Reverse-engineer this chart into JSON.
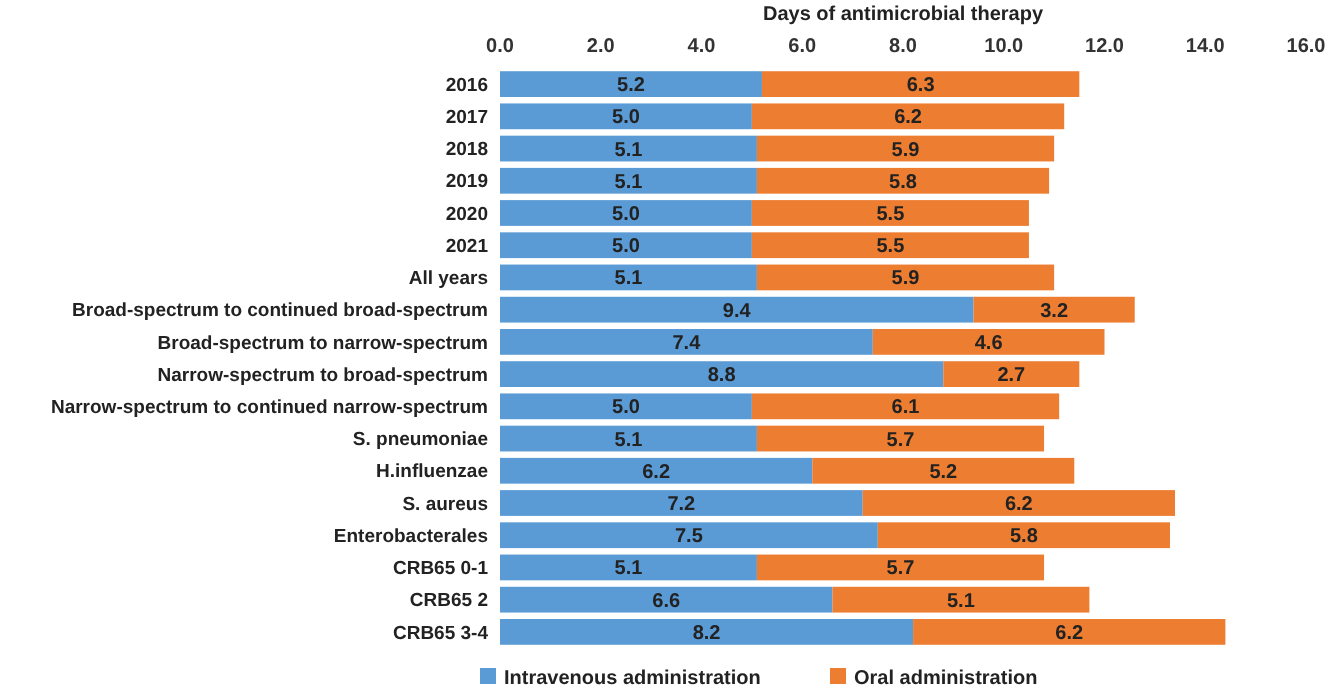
{
  "chart_data": {
    "type": "bar",
    "orientation": "horizontal",
    "stacked": true,
    "xlabel": "Days of antimicrobial therapy",
    "categories": [
      "2016",
      "2017",
      "2018",
      "2019",
      "2020",
      "2021",
      "All years",
      "Broad-spectrum to continued broad-spectrum",
      "Broad-spectrum to narrow-spectrum",
      "Narrow-spectrum to broad-spectrum",
      "Narrow-spectrum to continued narrow-spectrum",
      "S. pneumoniae",
      "H.influenzae",
      "S. aureus",
      "Enterobacterales",
      "CRB65 0-1",
      "CRB65 2",
      "CRB65 3-4"
    ],
    "series": [
      {
        "name": "Intravenous administration",
        "color": "#5b9bd5",
        "values": [
          5.2,
          5.0,
          5.1,
          5.1,
          5.0,
          5.0,
          5.1,
          9.4,
          7.4,
          8.8,
          5.0,
          5.1,
          6.2,
          7.2,
          7.5,
          5.1,
          6.6,
          8.2
        ],
        "value_labels": [
          "5.2",
          "5.0",
          "5.1",
          "5.1",
          "5.0",
          "5.0",
          "5.1",
          "9.4",
          "7.4",
          "8.8",
          "5.0",
          "5.1",
          "6.2",
          "7.2",
          "7.5",
          "5.1",
          "6.6",
          "8.2"
        ]
      },
      {
        "name": "Oral administration",
        "color": "#ed7d31",
        "values": [
          6.3,
          6.2,
          5.9,
          5.8,
          5.5,
          5.5,
          5.9,
          3.2,
          4.6,
          2.7,
          6.1,
          5.7,
          5.2,
          6.2,
          5.8,
          5.7,
          5.1,
          6.2
        ],
        "value_labels": [
          "6.3",
          "6.2",
          "5.9",
          "5.8",
          "5.5",
          "5.5",
          "5.9",
          "3.2",
          "4.6",
          "2.7",
          "6.1",
          "5.7",
          "5.2",
          "6.2",
          "5.8",
          "5.7",
          "5.1",
          "6.2"
        ]
      }
    ],
    "xlim": [
      0,
      16
    ],
    "xticks": [
      {
        "value": 0,
        "label": "0.0"
      },
      {
        "value": 2,
        "label": "2.0"
      },
      {
        "value": 4,
        "label": "4.0"
      },
      {
        "value": 6,
        "label": "6.0"
      },
      {
        "value": 8,
        "label": "8.0"
      },
      {
        "value": 10,
        "label": "10.0"
      },
      {
        "value": 12,
        "label": "12.0"
      },
      {
        "value": 14,
        "label": "14.0"
      },
      {
        "value": 16,
        "label": "16.0"
      }
    ],
    "legend": "bottom left",
    "grid": false
  }
}
